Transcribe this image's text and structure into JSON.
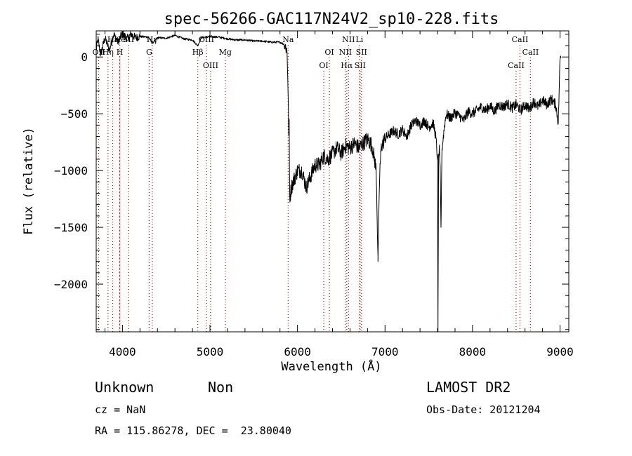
{
  "title": "spec-56266-GAC117N24V2_sp10-228.fits",
  "info": {
    "class": "Unknown",
    "subclass": "Non",
    "survey": "LAMOST DR2",
    "cz": "cz = NaN",
    "obs_date": "Obs-Date: 20121204",
    "coords": "RA = 115.86278, DEC =  23.80040"
  },
  "chart_data": {
    "type": "line",
    "title": "spec-56266-GAC117N24V2_sp10-228.fits",
    "xlabel": "Wavelength (Å)",
    "ylabel": "Flux (relative)",
    "xlim": [
      3700,
      9100
    ],
    "ylim": [
      -2420,
      230
    ],
    "xticks": [
      4000,
      5000,
      6000,
      7000,
      8000,
      9000
    ],
    "yticks": [
      0,
      -500,
      -1000,
      -1500,
      -2000
    ],
    "grid": false,
    "series_color": "#000000",
    "marker_color": "#cc0000",
    "anchors": [
      [
        3700,
        60
      ],
      [
        3720,
        160
      ],
      [
        3750,
        20
      ],
      [
        3800,
        170
      ],
      [
        3850,
        60
      ],
      [
        3900,
        200
      ],
      [
        3950,
        130
      ],
      [
        4000,
        210
      ],
      [
        4050,
        160
      ],
      [
        4100,
        200
      ],
      [
        4150,
        170
      ],
      [
        4200,
        180
      ],
      [
        4300,
        175
      ],
      [
        4340,
        120
      ],
      [
        4400,
        170
      ],
      [
        4500,
        165
      ],
      [
        4600,
        190
      ],
      [
        4700,
        160
      ],
      [
        4800,
        150
      ],
      [
        4860,
        100
      ],
      [
        4900,
        170
      ],
      [
        5000,
        180
      ],
      [
        5100,
        175
      ],
      [
        5200,
        160
      ],
      [
        5300,
        150
      ],
      [
        5400,
        150
      ],
      [
        5500,
        140
      ],
      [
        5600,
        140
      ],
      [
        5700,
        130
      ],
      [
        5800,
        130
      ],
      [
        5850,
        110
      ],
      [
        5880,
        60
      ],
      [
        5890,
        -200
      ],
      [
        5900,
        -700
      ],
      [
        5905,
        -600
      ],
      [
        5910,
        -1250
      ],
      [
        5930,
        -1150
      ],
      [
        5950,
        -1100
      ],
      [
        6000,
        -1000
      ],
      [
        6050,
        -1000
      ],
      [
        6100,
        -1150
      ],
      [
        6150,
        -1050
      ],
      [
        6200,
        -950
      ],
      [
        6250,
        -950
      ],
      [
        6300,
        -870
      ],
      [
        6350,
        -900
      ],
      [
        6400,
        -850
      ],
      [
        6450,
        -800
      ],
      [
        6500,
        -850
      ],
      [
        6550,
        -780
      ],
      [
        6600,
        -800
      ],
      [
        6650,
        -760
      ],
      [
        6700,
        -800
      ],
      [
        6750,
        -760
      ],
      [
        6800,
        -720
      ],
      [
        6850,
        -780
      ],
      [
        6880,
        -900
      ],
      [
        6900,
        -1000
      ],
      [
        6920,
        -1800
      ],
      [
        6940,
        -1000
      ],
      [
        6960,
        -780
      ],
      [
        7000,
        -720
      ],
      [
        7050,
        -680
      ],
      [
        7100,
        -650
      ],
      [
        7150,
        -680
      ],
      [
        7200,
        -640
      ],
      [
        7250,
        -700
      ],
      [
        7300,
        -600
      ],
      [
        7350,
        -560
      ],
      [
        7400,
        -600
      ],
      [
        7450,
        -560
      ],
      [
        7500,
        -620
      ],
      [
        7550,
        -580
      ],
      [
        7580,
        -700
      ],
      [
        7600,
        -900
      ],
      [
        7605,
        -2420
      ],
      [
        7612,
        -900
      ],
      [
        7620,
        -800
      ],
      [
        7630,
        -1000
      ],
      [
        7640,
        -1500
      ],
      [
        7650,
        -820
      ],
      [
        7680,
        -600
      ],
      [
        7700,
        -500
      ],
      [
        7750,
        -540
      ],
      [
        7800,
        -490
      ],
      [
        7850,
        -520
      ],
      [
        7900,
        -560
      ],
      [
        7950,
        -480
      ],
      [
        8000,
        -500
      ],
      [
        8050,
        -470
      ],
      [
        8100,
        -440
      ],
      [
        8150,
        -470
      ],
      [
        8200,
        -430
      ],
      [
        8250,
        -480
      ],
      [
        8300,
        -420
      ],
      [
        8350,
        -440
      ],
      [
        8400,
        -410
      ],
      [
        8450,
        -450
      ],
      [
        8500,
        -420
      ],
      [
        8550,
        -470
      ],
      [
        8600,
        -420
      ],
      [
        8650,
        -460
      ],
      [
        8700,
        -390
      ],
      [
        8750,
        -440
      ],
      [
        8800,
        -380
      ],
      [
        8850,
        -420
      ],
      [
        8900,
        -370
      ],
      [
        8950,
        -420
      ],
      [
        8980,
        -580
      ],
      [
        9000,
        -10
      ],
      [
        9010,
        10
      ]
    ],
    "lines": [
      {
        "label": "OII",
        "x": 3727,
        "row": 1
      },
      {
        "label": "Hη",
        "x": 3835,
        "row": 1
      },
      {
        "label": "H",
        "x": 3969,
        "row": 1
      },
      {
        "label": "Hε",
        "x": 3889,
        "row": 0
      },
      {
        "label": "He",
        "x": 3970,
        "row": 0
      },
      {
        "label": "SII",
        "x": 4069,
        "row": 0
      },
      {
        "label": "Hγ",
        "x": 4341,
        "row": 0
      },
      {
        "label": "G",
        "x": 4305,
        "row": 1
      },
      {
        "label": "Hβ",
        "x": 4861,
        "row": 1
      },
      {
        "label": "OIII",
        "x": 4959,
        "row": 0
      },
      {
        "label": "OIII",
        "x": 5007,
        "row": 2
      },
      {
        "label": "Mg",
        "x": 5175,
        "row": 1
      },
      {
        "label": "Na",
        "x": 5893,
        "row": 0
      },
      {
        "label": "OI",
        "x": 6300,
        "row": 2
      },
      {
        "label": "OI",
        "x": 6364,
        "row": 1
      },
      {
        "label": "Hα",
        "x": 6563,
        "row": 2
      },
      {
        "label": "NII",
        "x": 6583,
        "row": 0
      },
      {
        "label": "NII",
        "x": 6548,
        "row": 1
      },
      {
        "label": "SII",
        "x": 6716,
        "row": 2
      },
      {
        "label": "Li",
        "x": 6708,
        "row": 0
      },
      {
        "label": "SII",
        "x": 6731,
        "row": 1
      },
      {
        "label": "CaII",
        "x": 8498,
        "row": 2
      },
      {
        "label": "CaII",
        "x": 8542,
        "row": 0
      },
      {
        "label": "CaII",
        "x": 8662,
        "row": 1
      }
    ]
  }
}
